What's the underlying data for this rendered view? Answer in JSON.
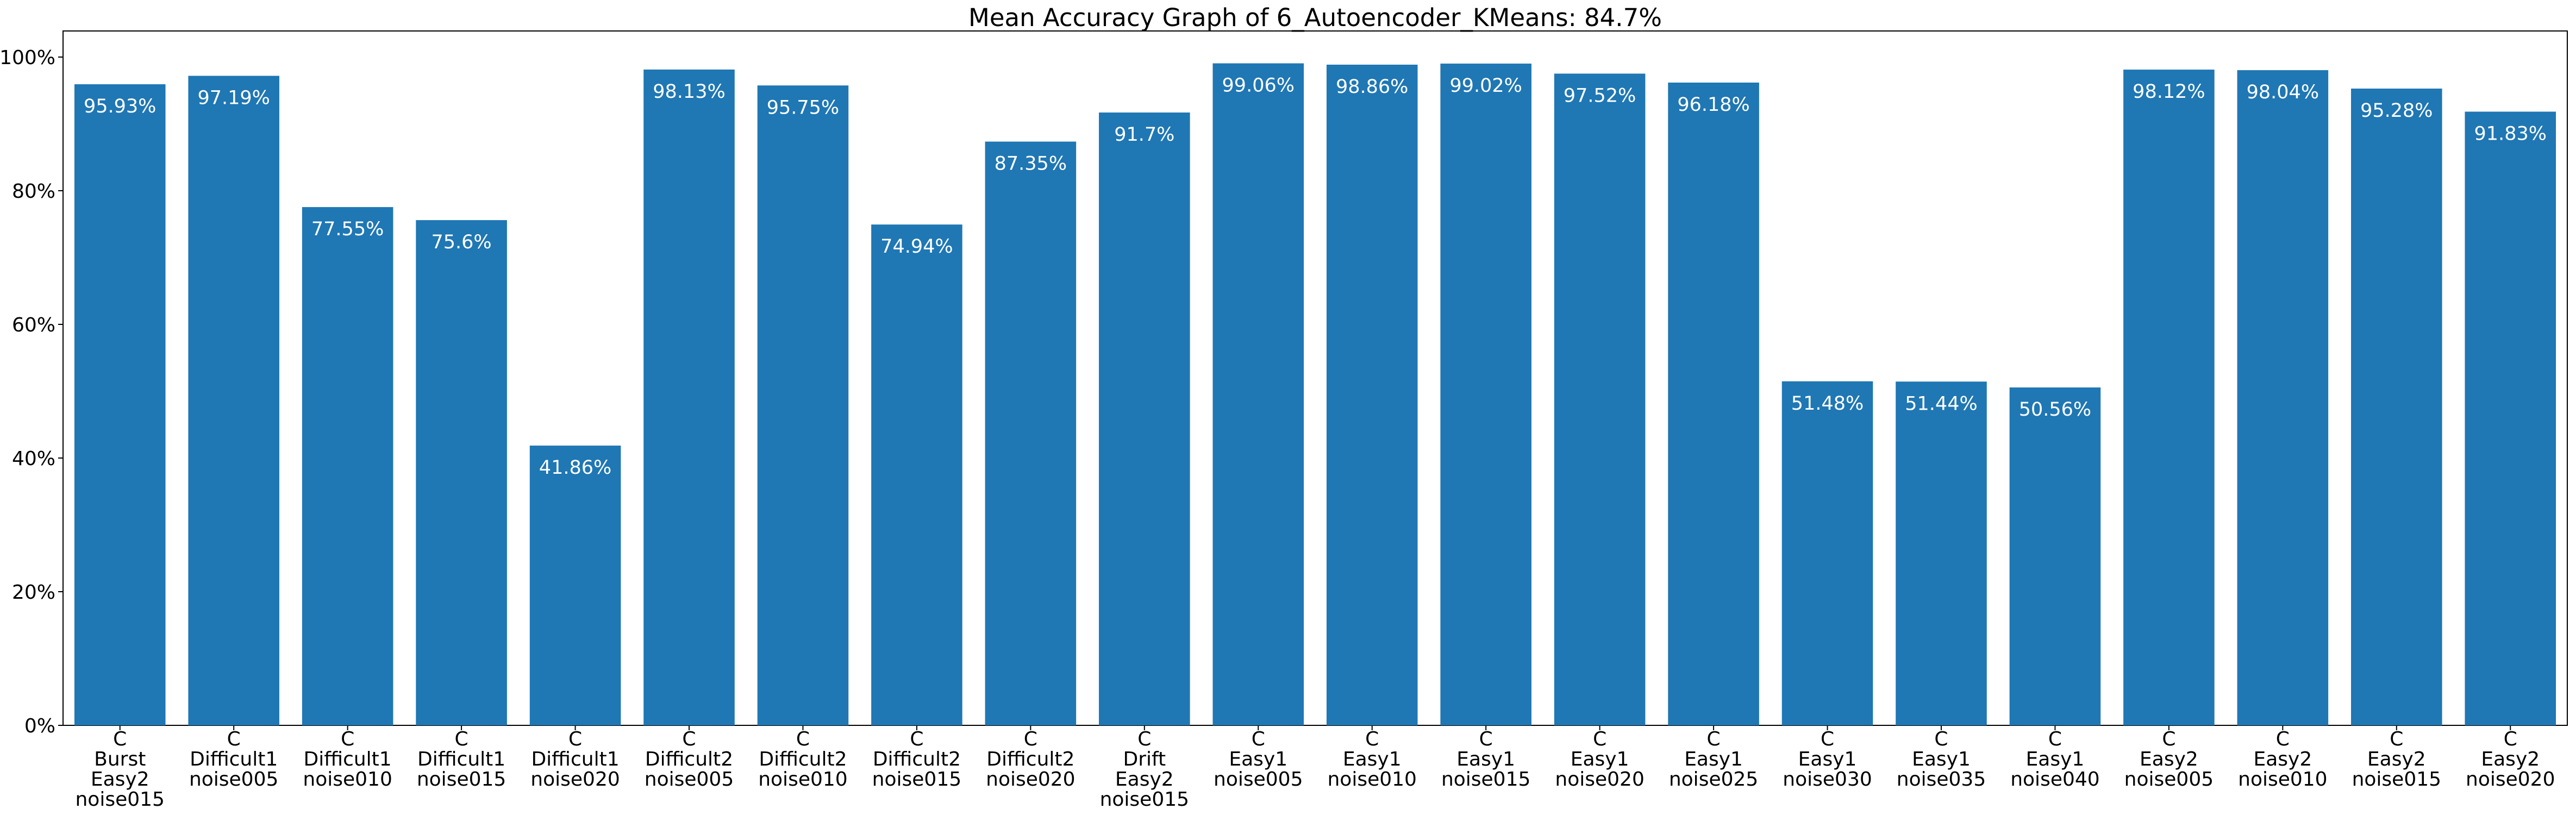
{
  "chart_data": {
    "type": "bar",
    "title": "Mean Accuracy Graph of 6_Autoencoder_KMeans: 84.7%",
    "xlabel": "",
    "ylabel": "",
    "ylim": [
      0,
      100
    ],
    "y_ticks": [
      "0%",
      "20%",
      "40%",
      "60%",
      "80%",
      "100%"
    ],
    "grid": false,
    "bar_color": "#1f77b4",
    "label_color": "#ffffff",
    "categories": [
      "C\nBurst\nEasy2\nnoise015",
      "C\nDifficult1\nnoise005",
      "C\nDifficult1\nnoise010",
      "C\nDifficult1\nnoise015",
      "C\nDifficult1\nnoise020",
      "C\nDifficult2\nnoise005",
      "C\nDifficult2\nnoise010",
      "C\nDifficult2\nnoise015",
      "C\nDifficult2\nnoise020",
      "C\nDrift\nEasy2\nnoise015",
      "C\nEasy1\nnoise005",
      "C\nEasy1\nnoise010",
      "C\nEasy1\nnoise015",
      "C\nEasy1\nnoise020",
      "C\nEasy1\nnoise025",
      "C\nEasy1\nnoise030",
      "C\nEasy1\nnoise035",
      "C\nEasy1\nnoise040",
      "C\nEasy2\nnoise005",
      "C\nEasy2\nnoise010",
      "C\nEasy2\nnoise015",
      "C\nEasy2\nnoise020"
    ],
    "values": [
      95.93,
      97.19,
      77.55,
      75.6,
      41.86,
      98.13,
      95.75,
      74.94,
      87.35,
      91.7,
      99.06,
      98.86,
      99.02,
      97.52,
      96.18,
      51.48,
      51.44,
      50.56,
      98.12,
      98.04,
      95.28,
      91.83
    ],
    "data_labels": [
      "95.93%",
      "97.19%",
      "77.55%",
      "75.6%",
      "41.86%",
      "98.13%",
      "95.75%",
      "74.94%",
      "87.35%",
      "91.7%",
      "99.06%",
      "98.86%",
      "99.02%",
      "97.52%",
      "96.18%",
      "51.48%",
      "51.44%",
      "50.56%",
      "98.12%",
      "98.04%",
      "95.28%",
      "91.83%"
    ]
  }
}
